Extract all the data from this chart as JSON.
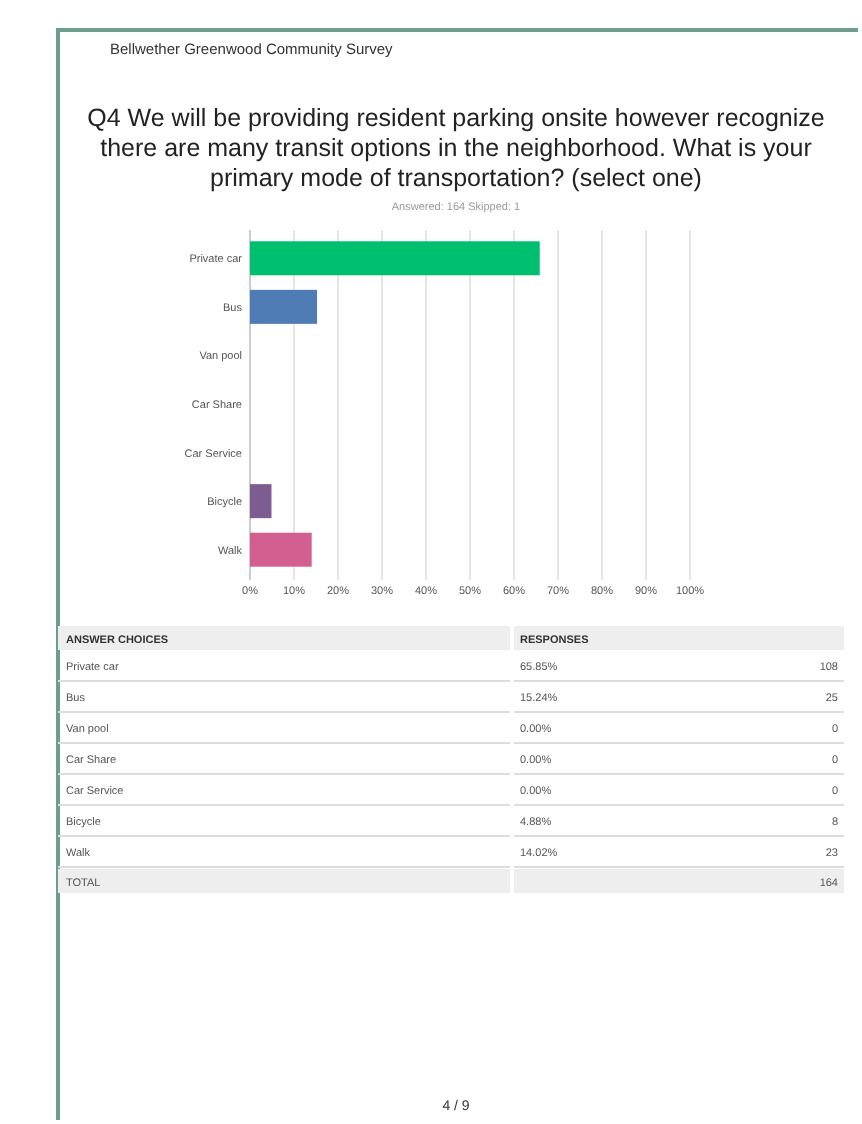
{
  "chart_data": {
    "type": "bar",
    "orientation": "horizontal",
    "title": "Q4 We will be providing resident parking onsite however recognize there are many transit options in the neighborhood. What is your primary mode of transportation? (select one)",
    "subtitle": "Answered: 164    Skipped: 1",
    "categories": [
      "Private car",
      "Bus",
      "Van pool",
      "Car Share",
      "Car Service",
      "Bicycle",
      "Walk"
    ],
    "values": [
      65.85,
      15.24,
      0,
      0,
      0,
      4.88,
      14.02
    ],
    "colors": [
      "#00bf6f",
      "#507cb6",
      "#f9be00",
      "#6bc8cd",
      "#ff8b4f",
      "#7d5c91",
      "#d25f90"
    ],
    "xlim": [
      0,
      100
    ],
    "xticks": [
      {
        "value": 0,
        "label": "0%"
      },
      {
        "value": 10,
        "label": "10%"
      },
      {
        "value": 20,
        "label": "20%"
      },
      {
        "value": 30,
        "label": "30%"
      },
      {
        "value": 40,
        "label": "40%"
      },
      {
        "value": 50,
        "label": "50%"
      },
      {
        "value": 60,
        "label": "60%"
      },
      {
        "value": 70,
        "label": "70%"
      },
      {
        "value": 80,
        "label": "80%"
      },
      {
        "value": 90,
        "label": "90%"
      },
      {
        "value": 100,
        "label": "100%"
      }
    ],
    "grid": "x",
    "annotations": [
      "Bellwether Greenwood Community Survey",
      "4 / 9",
      "ANSWER CHOICES",
      "RESPONSES",
      "65.85%",
      "15.24%",
      "0.00%",
      "0.00%",
      "0.00%",
      "4.88%",
      "14.02%",
      "108",
      "25",
      "0",
      "0",
      "0",
      "8",
      "23",
      "TOTAL",
      "164"
    ]
  }
}
